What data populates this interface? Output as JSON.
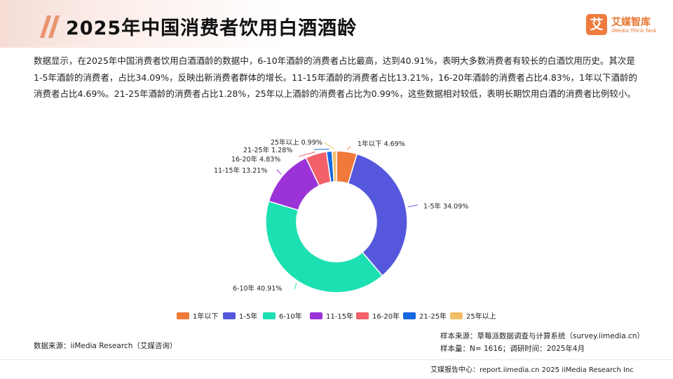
{
  "page": {
    "title": "2025年中国消费者饮用白酒酒龄",
    "description": "数据显示，在2025年中国消费者饮用白酒酒龄的数据中，6-10年酒龄的消费者占比最高，达到40.91%，表明大多数消费者有较长的白酒饮用历史。其次是1-5年酒龄的消费者，占比34.09%，反映出新消费者群体的增长。11-15年酒龄的消费者占比13.21%，16-20年酒龄的消费者占比4.83%，1年以下酒龄的消费者占比4.69%。21-25年酒龄的消费者占比1.28%，25年以上酒龄的消费者占比为0.99%，这些数据相对较低，表明长期饮用白酒的消费者比例较小。"
  },
  "logo": {
    "mark": "艾",
    "name_cn": "艾媒智库",
    "name_en": "iiMedia Think Tank"
  },
  "chart_data": {
    "type": "pie",
    "style": "donut",
    "categories": [
      "1年以下",
      "1-5年",
      "6-10年",
      "11-15年",
      "16-20年",
      "21-25年",
      "25年以上"
    ],
    "values": [
      4.69,
      34.09,
      40.91,
      13.21,
      4.83,
      1.28,
      0.99
    ],
    "unit": "%",
    "data_labels": [
      "1年以下 4.69%",
      "1-5年 34.09%",
      "6-10年 40.91%",
      "11-15年 13.21%",
      "16-20年 4.83%",
      "21-25年 1.28%",
      "25年以上 0.99%"
    ],
    "colors": [
      "#f07a3a",
      "#5557dc",
      "#1de0b2",
      "#9b33d8",
      "#f2606a",
      "#1769e0",
      "#f2bf67"
    ],
    "legend_position": "bottom"
  },
  "sources": {
    "data_source": "数据来源：iiMedia Research（艾媒咨询）",
    "sample_source": "样本来源：草莓派数据调查与计算系统（survey.iimedia.cn）",
    "sample_size": "样本量：N= 1616；调研时间：2025年4月"
  },
  "footer": {
    "text": "艾媒报告中心：report.iimedia.cn   2025 iiMedia Research Inc"
  }
}
